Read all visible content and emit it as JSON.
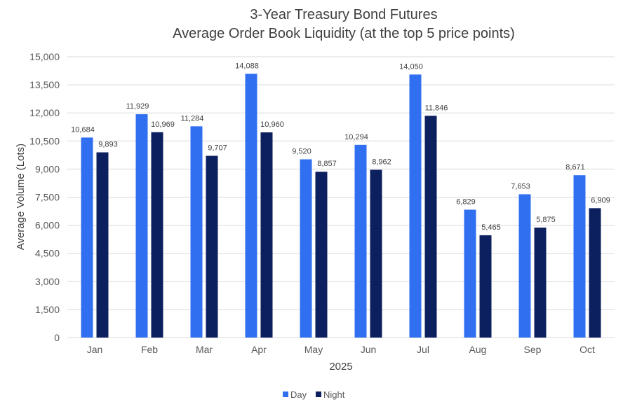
{
  "chart_data": {
    "type": "bar",
    "title_lines": [
      "3-Year Treasury Bond Futures",
      "Average Order Book Liquidity (at the top 5 price points)"
    ],
    "xlabel": "2025",
    "ylabel": "Average Volume  (Lots)",
    "ylim": [
      0,
      15000
    ],
    "yticks": [
      0,
      1500,
      3000,
      4500,
      6000,
      7500,
      9000,
      10500,
      12000,
      13500,
      15000
    ],
    "ytick_labels": [
      "0",
      "1,500",
      "3,000",
      "4,500",
      "6,000",
      "7,500",
      "9,000",
      "10,500",
      "12,000",
      "13,500",
      "15,000"
    ],
    "grid": true,
    "legend_placement": "bottom",
    "categories": [
      "Jan",
      "Feb",
      "Mar",
      "Apr",
      "May",
      "Jun",
      "Jul",
      "Aug",
      "Sep",
      "Oct"
    ],
    "series": [
      {
        "name": "Day",
        "color": "#2f6ff0",
        "values": [
          10684,
          11929,
          11284,
          14088,
          9520,
          10294,
          14050,
          6829,
          7653,
          8671
        ],
        "labels": [
          "10,684",
          "11,929",
          "11,284",
          "14,088",
          "9,520",
          "10,294",
          "14,050",
          "6,829",
          "7,653",
          "8,671"
        ]
      },
      {
        "name": "Night",
        "color": "#0c1f5e",
        "values": [
          9893,
          10969,
          9707,
          10960,
          8857,
          8962,
          11846,
          5465,
          5875,
          6909
        ],
        "labels": [
          "9,893",
          "10,969",
          "9,707",
          "10,960",
          "8,857",
          "8,962",
          "11,846",
          "5,465",
          "5,875",
          "6,909"
        ]
      }
    ]
  }
}
